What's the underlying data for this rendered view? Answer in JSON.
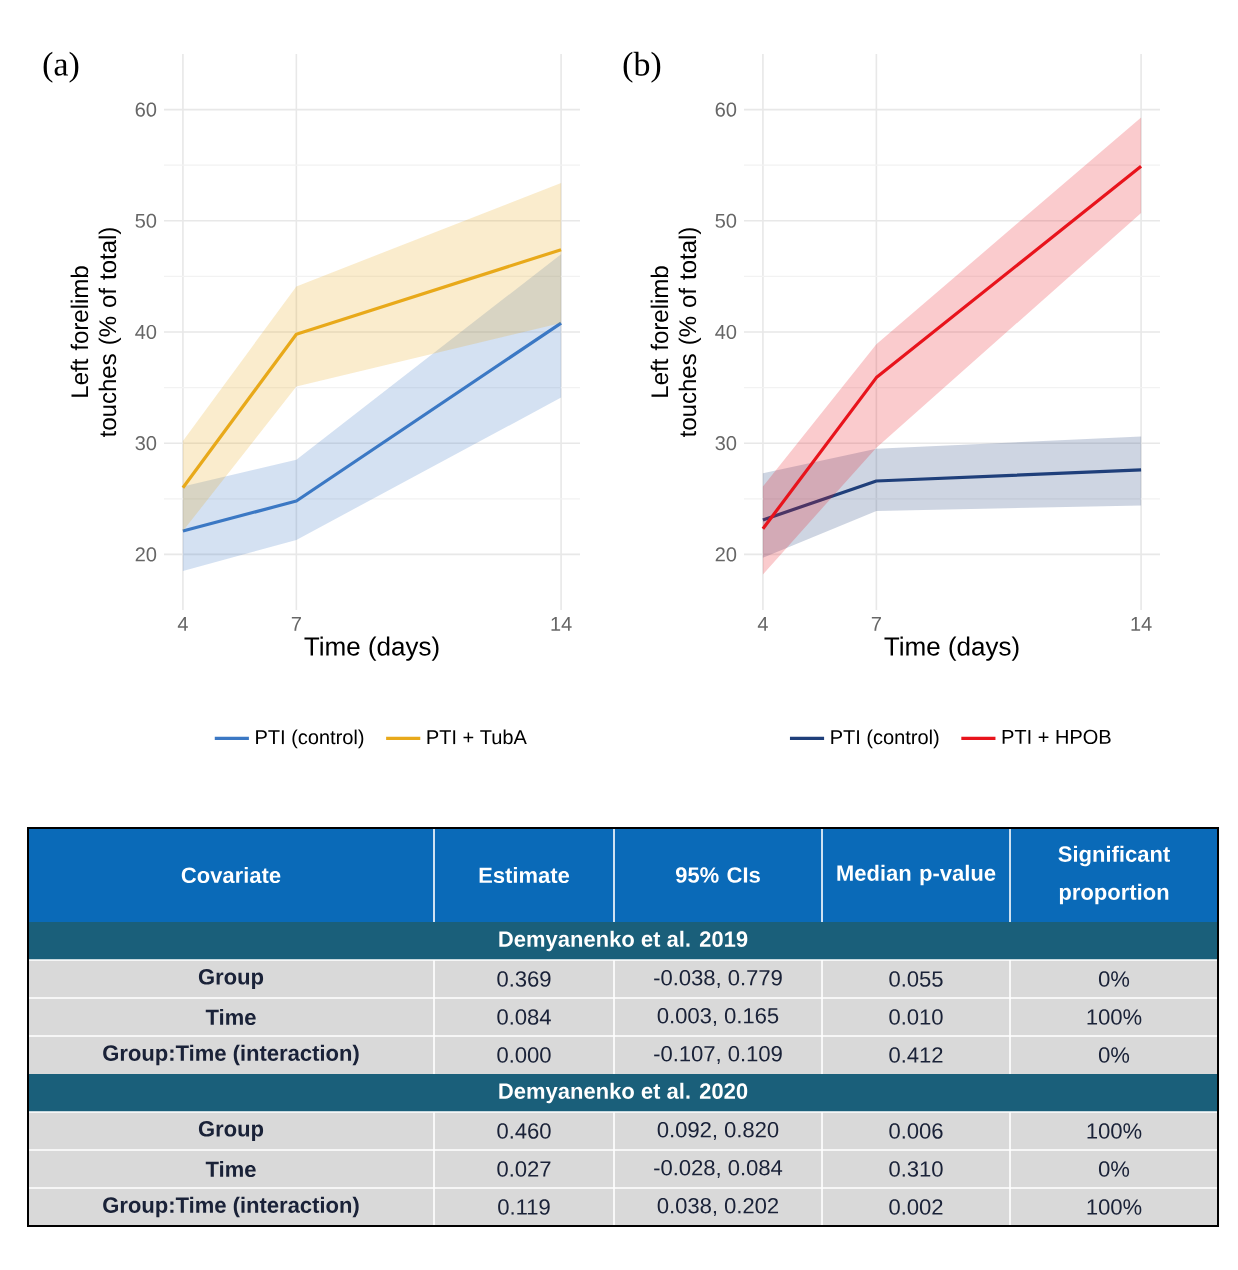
{
  "chart_data": [
    {
      "type": "line",
      "title": "(a)",
      "xlabel": "Time (days)",
      "ylabel": "Left forelimb touches (% of total)",
      "x": [
        4,
        7,
        14
      ],
      "xlim": [
        3.5,
        14.5
      ],
      "xticks": [
        4,
        7,
        14
      ],
      "ylim": [
        15,
        65
      ],
      "yticks": [
        20,
        30,
        40,
        50,
        60
      ],
      "grid": true,
      "legend": "bottom",
      "series": [
        {
          "name": "PTI (control)",
          "color": "#3b78c4",
          "values": [
            22.1,
            24.8,
            40.8
          ],
          "lower": [
            18.5,
            21.3,
            34.1
          ],
          "upper": [
            26.1,
            28.5,
            47.0
          ]
        },
        {
          "name": "PTI + TubA",
          "color": "#e8a91a",
          "values": [
            26.0,
            39.8,
            47.4
          ],
          "lower": [
            22.1,
            35.1,
            40.8
          ],
          "upper": [
            30.2,
            44.1,
            53.4
          ]
        }
      ]
    },
    {
      "type": "line",
      "title": "(b)",
      "xlabel": "Time (days)",
      "ylabel": "Left forelimb touches (% of total)",
      "x": [
        4,
        7,
        14
      ],
      "xlim": [
        3.5,
        14.5
      ],
      "xticks": [
        4,
        7,
        14
      ],
      "ylim": [
        15,
        65
      ],
      "yticks": [
        20,
        30,
        40,
        50,
        60
      ],
      "grid": true,
      "legend": "bottom",
      "series": [
        {
          "name": "PTI (control)",
          "color": "#1f3f7a",
          "values": [
            23.1,
            26.6,
            27.6
          ],
          "lower": [
            19.7,
            23.9,
            24.4
          ],
          "upper": [
            27.3,
            29.5,
            30.6
          ]
        },
        {
          "name": "PTI + HPOB",
          "color": "#e8141c",
          "values": [
            22.3,
            35.9,
            54.9
          ],
          "lower": [
            18.2,
            29.6,
            50.7
          ],
          "upper": [
            26.1,
            38.9,
            59.3
          ]
        }
      ]
    },
    {
      "type": "other",
      "annotations": [
        "Covariate",
        "Estimate",
        "95% CIs",
        "Median p-value",
        "Significant proportion",
        "Demyanenko et al. 2019",
        "Group",
        "0.369",
        "-0.038, 0.779",
        "0.055",
        "0%",
        "Time",
        "0.084",
        "0.003, 0.165",
        "0.010",
        "100%",
        "Group:Time (interaction)",
        "0.000",
        "-0.107, 0.109",
        "0.412",
        "0%",
        "Demyanenko et al. 2020",
        "Group",
        "0.460",
        "0.092, 0.820",
        "0.006",
        "100%",
        "Time",
        "0.027",
        "-0.028, 0.084",
        "0.310",
        "0%",
        "Group:Time (interaction)",
        "0.119",
        "0.038, 0.202",
        "0.002",
        "100%"
      ]
    }
  ]
}
